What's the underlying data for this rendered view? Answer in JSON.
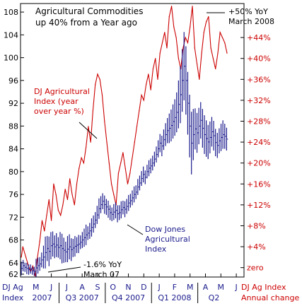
{
  "chart_data": {
    "type": "line",
    "title": "Agricultural Commodities\nup 40% from a Year ago",
    "left_axis": {
      "label_lines": [
        "DJ Ag",
        "Index"
      ],
      "ticks": [
        62,
        64,
        68,
        72,
        76,
        80,
        84,
        88,
        92,
        96,
        100,
        104,
        108
      ],
      "ylim": [
        61.5,
        109.5
      ],
      "color": "#1a1a8c"
    },
    "right_axis": {
      "label_lines": [
        "DJ Ag Index",
        "Annual change"
      ],
      "ticks": [
        {
          "value": 0,
          "label": "zero"
        },
        {
          "value": 4,
          "label": "+4%"
        },
        {
          "value": 8,
          "label": "+8%"
        },
        {
          "value": 12,
          "label": "+12%"
        },
        {
          "value": 16,
          "label": "+16%"
        },
        {
          "value": 20,
          "label": "+20%"
        },
        {
          "value": 24,
          "label": "+24%"
        },
        {
          "value": 28,
          "label": "+28%"
        },
        {
          "value": 32,
          "label": "+32%"
        },
        {
          "value": 36,
          "label": "+36%"
        },
        {
          "value": 40,
          "label": "+40%"
        },
        {
          "value": 44,
          "label": "+44%"
        }
      ],
      "ylim": [
        -1.8,
        50.5
      ],
      "color": "#cc0000"
    },
    "x_axis": {
      "month_labels": [
        "M",
        "J",
        "J",
        "A",
        "S",
        "O",
        "N",
        "D",
        "J",
        "F",
        "M",
        "A",
        "M",
        "J"
      ],
      "month_positions": [
        0,
        1,
        2,
        3,
        4,
        5,
        6,
        7,
        8,
        9,
        10,
        11,
        12,
        13
      ],
      "period_labels": [
        {
          "label": "2007",
          "from": -0.7,
          "to": 1.5
        },
        {
          "label": "Q3 2007",
          "from": 1.5,
          "to": 4.5
        },
        {
          "label": "Q4 2007",
          "from": 4.5,
          "to": 7.5
        },
        {
          "label": "Q1 2008",
          "from": 7.5,
          "to": 10.5
        },
        {
          "label": "Q2",
          "from": 10.5,
          "to": 12.6
        }
      ],
      "period_separators": [
        1.5,
        4.5,
        7.5,
        10.5
      ],
      "xlim": [
        -1.0,
        13.5
      ]
    },
    "series": [
      {
        "name": "DJ Agricultural Index (year over year %)",
        "axis": "right",
        "style": "line",
        "color": "#cc0000",
        "x": [
          -0.95,
          -0.85,
          -0.75,
          -0.65,
          -0.5,
          -0.35,
          -0.2,
          -0.05,
          0.1,
          0.25,
          0.4,
          0.55,
          0.7,
          0.85,
          1.0,
          1.15,
          1.3,
          1.45,
          1.6,
          1.75,
          1.9,
          2.05,
          2.2,
          2.35,
          2.5,
          2.65,
          2.8,
          2.95,
          3.1,
          3.25,
          3.4,
          3.55,
          3.7,
          3.85,
          4.0,
          4.15,
          4.3,
          4.45,
          4.6,
          4.75,
          4.9,
          5.05,
          5.2,
          5.35,
          5.5,
          5.65,
          5.8,
          5.95,
          6.1,
          6.25,
          6.4,
          6.55,
          6.7,
          6.85,
          7.0,
          7.15,
          7.3,
          7.45,
          7.6,
          7.75,
          7.9,
          8.05,
          8.2,
          8.35,
          8.5,
          8.65,
          8.8,
          8.95,
          9.1,
          9.25,
          9.4,
          9.55,
          9.7,
          9.85,
          10.0,
          10.15,
          10.3,
          10.45,
          10.6,
          10.75,
          10.9,
          11.05,
          11.2,
          11.35,
          11.5,
          11.65,
          11.8,
          11.95,
          12.1,
          12.25,
          12.4
        ],
        "values": [
          2,
          4,
          3,
          2,
          0.5,
          -0.8,
          0.3,
          -1.6,
          2,
          5,
          9,
          7,
          10,
          13,
          9,
          16,
          14,
          11,
          10,
          12,
          15,
          13,
          17,
          14,
          12,
          16,
          19,
          21,
          20,
          23,
          27,
          24,
          30,
          35,
          37,
          36,
          33,
          28,
          24,
          20,
          16,
          14,
          12,
          18,
          20,
          22,
          19,
          16,
          18,
          21,
          24,
          27,
          30,
          33,
          32,
          35,
          37,
          34,
          38,
          40,
          36,
          41,
          43,
          45,
          42,
          48,
          50,
          46,
          44,
          40,
          38,
          42,
          44,
          43,
          46,
          50,
          42,
          39,
          36,
          41,
          45,
          47,
          48,
          42,
          40,
          38,
          41,
          45,
          44,
          43,
          41
        ]
      },
      {
        "name": "Dow Jones Agricultural Index",
        "axis": "left",
        "style": "bars",
        "color": "#1a1a8c",
        "x": [
          -0.95,
          -0.83,
          -0.71,
          -0.59,
          -0.47,
          -0.35,
          -0.23,
          -0.11,
          0.01,
          0.13,
          0.25,
          0.37,
          0.49,
          0.61,
          0.73,
          0.85,
          0.97,
          1.09,
          1.21,
          1.33,
          1.45,
          1.57,
          1.69,
          1.81,
          1.93,
          2.05,
          2.17,
          2.29,
          2.41,
          2.53,
          2.65,
          2.77,
          2.89,
          3.01,
          3.13,
          3.25,
          3.37,
          3.49,
          3.61,
          3.73,
          3.85,
          3.97,
          4.09,
          4.21,
          4.33,
          4.45,
          4.57,
          4.69,
          4.81,
          4.93,
          5.05,
          5.17,
          5.29,
          5.41,
          5.53,
          5.65,
          5.77,
          5.89,
          6.01,
          6.13,
          6.25,
          6.37,
          6.49,
          6.61,
          6.73,
          6.85,
          6.97,
          7.09,
          7.21,
          7.33,
          7.45,
          7.57,
          7.69,
          7.81,
          7.93,
          8.05,
          8.17,
          8.29,
          8.41,
          8.53,
          8.65,
          8.77,
          8.89,
          9.01,
          9.13,
          9.25,
          9.37,
          9.49,
          9.61,
          9.73,
          9.85,
          9.97,
          10.09,
          10.21,
          10.33,
          10.45,
          10.57,
          10.69,
          10.81,
          10.93,
          11.05,
          11.17,
          11.29,
          11.41,
          11.53,
          11.65,
          11.77,
          11.89,
          12.01,
          12.13,
          12.25,
          12.37
        ],
        "values": [
          63,
          63.5,
          63.2,
          63,
          62.8,
          62.9,
          62.6,
          62.5,
          63.1,
          63.5,
          63.8,
          64.5,
          65,
          65.8,
          66.5,
          66,
          67,
          67.3,
          66.8,
          67.1,
          66.7,
          67,
          66.5,
          66.2,
          65.9,
          66.4,
          66.8,
          66.3,
          66.6,
          66.9,
          67.1,
          67.3,
          67.6,
          68,
          68.4,
          68.9,
          69.2,
          69.6,
          70.2,
          70.8,
          71.5,
          72.4,
          73.5,
          74.2,
          74.8,
          74.2,
          73.8,
          73.4,
          72.8,
          72.5,
          72.9,
          73.2,
          72.6,
          72.8,
          73.3,
          73.7,
          73.4,
          73.9,
          74.5,
          74.9,
          75.4,
          76,
          76.4,
          77.3,
          78,
          78.8,
          79.5,
          79,
          80,
          80.6,
          81,
          81.5,
          82.2,
          83,
          84,
          85,
          84.5,
          85.6,
          86.5,
          87.2,
          87.6,
          88.1,
          88.8,
          89.5,
          90.4,
          91.8,
          93.5,
          96,
          98.5,
          96,
          92,
          88,
          85,
          86.5,
          87.5,
          86.8,
          88,
          89,
          87.6,
          86.5,
          85.8,
          85.2,
          86,
          87,
          86.3,
          85.1,
          84.6,
          85.4,
          86,
          86.5,
          86.2,
          85.7
        ],
        "range_half_widths": [
          1.2,
          1,
          0.8,
          1,
          0.9,
          0.8,
          0.7,
          0.8,
          1.6,
          1.4,
          1.2,
          1.3,
          2,
          2.8,
          2.2,
          2.6,
          2.4,
          2.2,
          2,
          2.1,
          1.8,
          2.4,
          2.6,
          2.2,
          1.8,
          2.3,
          2.2,
          2,
          1.6,
          1.8,
          1.4,
          1.6,
          1.2,
          1.4,
          1.6,
          1.8,
          1.2,
          1.4,
          1.6,
          1.5,
          1.4,
          1.6,
          1.8,
          1.5,
          1.4,
          1.6,
          1.4,
          1.5,
          1.3,
          1.2,
          1.4,
          1.4,
          1.5,
          1.3,
          1.5,
          1.2,
          1.4,
          1.3,
          1.4,
          1.2,
          1.3,
          1.4,
          1.2,
          1.4,
          1.3,
          1.3,
          1.4,
          1.2,
          1.2,
          1.4,
          1.3,
          1.3,
          1.3,
          1.4,
          1.5,
          1.6,
          1.8,
          1.8,
          2,
          2.2,
          2.6,
          2.8,
          3,
          3.2,
          3.5,
          4.2,
          5,
          5.5,
          6,
          6,
          5.5,
          5.5,
          5.5,
          4.5,
          3.6,
          3.5,
          3.2,
          3.2,
          3.4,
          3.4,
          3.2,
          3,
          2.8,
          2.6,
          2.6,
          2.4,
          2.2,
          2.2,
          2.4,
          2.5,
          2.2,
          2
        ]
      }
    ],
    "annotations": [
      {
        "text": "DJ Agricultural\nIndex (year\nover year %)",
        "color": "#cc0000"
      },
      {
        "text": "Dow Jones\nAgricultural\nIndex",
        "color": "#1a1a8c"
      },
      {
        "text": "-1.6% YoY\nMarch 07",
        "color": "#000000"
      },
      {
        "text": "+50% YoY\nMarch 2008",
        "color": "#000000"
      }
    ],
    "grid": false,
    "legend": "none"
  }
}
